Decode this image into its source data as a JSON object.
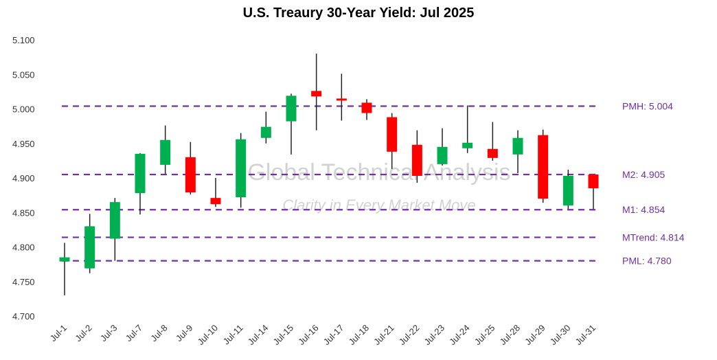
{
  "chart_data": {
    "type": "candlestick",
    "title": "U.S. Treaury 30-Year Yield: Jul 2025",
    "ylim": [
      4.7,
      5.1
    ],
    "yticks": [
      "4.700",
      "4.750",
      "4.800",
      "4.850",
      "4.900",
      "4.950",
      "5.000",
      "5.050",
      "5.100"
    ],
    "categories": [
      "Jul-1",
      "Jul-2",
      "Jul-3",
      "Jul-7",
      "Jul-8",
      "Jul-9",
      "Jul-10",
      "Jul-11",
      "Jul-14",
      "Jul-15",
      "Jul-16",
      "Jul-17",
      "Jul-18",
      "Jul-21",
      "Jul-22",
      "Jul-23",
      "Jul-24",
      "Jul-25",
      "Jul-28",
      "Jul-29",
      "Jul-30",
      "Jul-31"
    ],
    "ohlc": [
      [
        4.779,
        4.806,
        4.73,
        4.785
      ],
      [
        4.769,
        4.848,
        4.762,
        4.83
      ],
      [
        4.812,
        4.871,
        4.78,
        4.865
      ],
      [
        4.878,
        4.936,
        4.847,
        4.935
      ],
      [
        4.919,
        4.976,
        4.906,
        4.955
      ],
      [
        4.93,
        4.952,
        4.876,
        4.879
      ],
      [
        4.871,
        4.9,
        4.858,
        4.862
      ],
      [
        4.872,
        4.965,
        4.857,
        4.956
      ],
      [
        4.958,
        4.996,
        4.95,
        4.974
      ],
      [
        4.982,
        5.022,
        4.934,
        5.019
      ],
      [
        5.026,
        5.08,
        4.969,
        5.018
      ],
      [
        5.015,
        5.051,
        4.983,
        5.012
      ],
      [
        5.009,
        5.014,
        4.984,
        4.994
      ],
      [
        4.988,
        4.994,
        4.913,
        4.938
      ],
      [
        4.948,
        4.969,
        4.893,
        4.903
      ],
      [
        4.92,
        4.972,
        4.918,
        4.945
      ],
      [
        4.943,
        5.005,
        4.936,
        4.951
      ],
      [
        4.942,
        4.981,
        4.925,
        4.929
      ],
      [
        4.934,
        4.969,
        4.907,
        4.958
      ],
      [
        4.962,
        4.97,
        4.864,
        4.87
      ],
      [
        4.86,
        4.912,
        4.855,
        4.903
      ],
      [
        4.905,
        4.905,
        4.855,
        4.885
      ]
    ],
    "ohlc_order": [
      "open",
      "high",
      "low",
      "close"
    ],
    "levels": [
      {
        "label": "PMH: 5.004",
        "value": 5.004
      },
      {
        "label": "M2: 4.905",
        "value": 4.905
      },
      {
        "label": "M1: 4.854",
        "value": 4.854
      },
      {
        "label": "MTrend: 4.814",
        "value": 4.814
      },
      {
        "label": "PML: 4.780",
        "value": 4.78
      }
    ],
    "colors": {
      "up": "#00B050",
      "down": "#FF0000",
      "level": "#7030A0",
      "wick": "#222222"
    }
  },
  "watermark": {
    "line1": "Global Technical Analysis",
    "line2": "Clarity in Every Market Move"
  }
}
